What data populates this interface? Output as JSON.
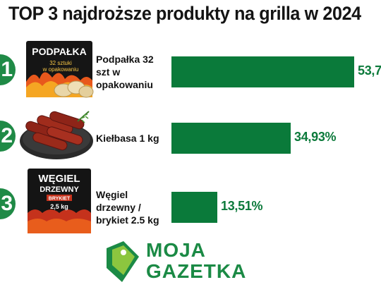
{
  "chart_data": {
    "type": "bar",
    "orientation": "horizontal",
    "title": "TOP 3 najdroższe produkty na grilla w 2024",
    "ranks": [
      "1",
      "2",
      "3"
    ],
    "categories": [
      "Podpałka 32 szt w opakowaniu",
      "Kiełbasa 1 kg",
      "Węgiel drzewny / brykiet 2.5 kg"
    ],
    "values": [
      53.7,
      34.93,
      13.51
    ],
    "value_labels": [
      "53,7",
      "34,93%",
      "13,51%"
    ],
    "xlim": [
      0,
      60
    ],
    "grid": false,
    "legend": "none"
  },
  "products": {
    "firelighter_box": {
      "brand": "PODPAŁKA",
      "line1": "32 sztuki",
      "line2": "w opakowaniu"
    },
    "charcoal_bag": {
      "line1": "WĘGIEL",
      "line2": "DRZEWNY",
      "line3": "BRYKIET",
      "line4": "2,5 kg"
    }
  },
  "logo": {
    "line1": "MOJA",
    "line2": "GAZETKA"
  },
  "colors": {
    "bar": "#0a7a3a",
    "rank_badge": "#1f8a46",
    "value_text": "#0c7a3b",
    "logo_green": "#1b8a45",
    "logo_light": "#8cc63f"
  },
  "icons": [
    "firelighter-box-icon",
    "sausages-icon",
    "charcoal-bag-icon",
    "price-tag-icon"
  ]
}
